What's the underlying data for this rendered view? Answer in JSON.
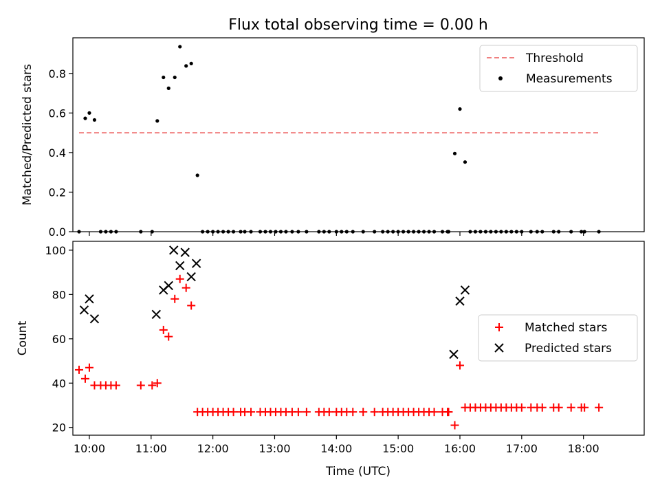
{
  "title": "Flux total observing time = 0.00 h",
  "chart_data": [
    {
      "type": "scatter",
      "title": "Flux total observing time = 0.00 h",
      "xlabel": "",
      "ylabel": "Matched/Predicted stars",
      "xlim": [
        "09:44",
        "18:59"
      ],
      "ylim": [
        0,
        0.98
      ],
      "yticks": [
        0.0,
        0.2,
        0.4,
        0.6,
        0.8
      ],
      "yticklabels": [
        "0.0",
        "0.2",
        "0.4",
        "0.6",
        "0.8"
      ],
      "xticks": [
        "10:00",
        "11:00",
        "12:00",
        "13:00",
        "14:00",
        "15:00",
        "16:00",
        "17:00",
        "18:00"
      ],
      "grid": false,
      "legend": {
        "position": "top-right",
        "entries": [
          "Threshold",
          "Measurements"
        ]
      },
      "threshold": {
        "name": "Threshold",
        "value": 0.5,
        "x_start": "09:50",
        "x_end": "18:15",
        "color": "#f08080",
        "style": "dashed"
      },
      "series": [
        {
          "name": "Measurements",
          "color": "#000000",
          "marker": "dot",
          "points": [
            [
              "09:50",
              0
            ],
            [
              "09:56",
              0.573
            ],
            [
              "10:00",
              0.6
            ],
            [
              "10:05",
              0.565
            ],
            [
              "10:11",
              0
            ],
            [
              "10:16",
              0
            ],
            [
              "10:21",
              0
            ],
            [
              "10:26",
              0
            ],
            [
              "10:50",
              0
            ],
            [
              "11:01",
              0
            ],
            [
              "11:06",
              0.56
            ],
            [
              "11:12",
              0.78
            ],
            [
              "11:17",
              0.725
            ],
            [
              "11:23",
              0.78
            ],
            [
              "11:28",
              0.935
            ],
            [
              "11:34",
              0.838
            ],
            [
              "11:39",
              0.85
            ],
            [
              "11:45",
              0.285
            ],
            [
              "11:50",
              0
            ],
            [
              "11:55",
              0
            ],
            [
              "12:00",
              0
            ],
            [
              "12:05",
              0
            ],
            [
              "12:10",
              0
            ],
            [
              "12:15",
              0
            ],
            [
              "12:20",
              0
            ],
            [
              "12:27",
              0
            ],
            [
              "12:31",
              0
            ],
            [
              "12:37",
              0
            ],
            [
              "12:46",
              0
            ],
            [
              "12:51",
              0
            ],
            [
              "12:56",
              0
            ],
            [
              "13:01",
              0
            ],
            [
              "13:06",
              0
            ],
            [
              "13:11",
              0
            ],
            [
              "13:17",
              0
            ],
            [
              "13:23",
              0
            ],
            [
              "13:31",
              0
            ],
            [
              "13:43",
              0
            ],
            [
              "13:48",
              0
            ],
            [
              "13:53",
              0
            ],
            [
              "14:00",
              0
            ],
            [
              "14:05",
              0
            ],
            [
              "14:10",
              0
            ],
            [
              "14:16",
              0
            ],
            [
              "14:26",
              0
            ],
            [
              "14:37",
              0
            ],
            [
              "14:45",
              0
            ],
            [
              "14:50",
              0
            ],
            [
              "14:55",
              0
            ],
            [
              "15:00",
              0
            ],
            [
              "15:05",
              0
            ],
            [
              "15:10",
              0
            ],
            [
              "15:15",
              0
            ],
            [
              "15:20",
              0
            ],
            [
              "15:25",
              0
            ],
            [
              "15:30",
              0
            ],
            [
              "15:35",
              0
            ],
            [
              "15:43",
              0
            ],
            [
              "15:48",
              0
            ],
            [
              "15:49",
              0
            ],
            [
              "15:55",
              0.395
            ],
            [
              "16:00",
              0.62
            ],
            [
              "16:05",
              0.352
            ],
            [
              "16:10",
              0
            ],
            [
              "16:15",
              0
            ],
            [
              "16:20",
              0
            ],
            [
              "16:25",
              0
            ],
            [
              "16:30",
              0
            ],
            [
              "16:35",
              0
            ],
            [
              "16:40",
              0
            ],
            [
              "16:45",
              0
            ],
            [
              "16:50",
              0
            ],
            [
              "16:55",
              0
            ],
            [
              "17:00",
              0
            ],
            [
              "17:09",
              0
            ],
            [
              "17:15",
              0
            ],
            [
              "17:20",
              0
            ],
            [
              "17:31",
              0
            ],
            [
              "17:36",
              0
            ],
            [
              "17:48",
              0
            ],
            [
              "17:58",
              0
            ],
            [
              "18:01",
              0
            ],
            [
              "18:15",
              0
            ]
          ]
        }
      ]
    },
    {
      "type": "scatter",
      "title": "",
      "xlabel": "Time (UTC)",
      "ylabel": "Count",
      "xlim": [
        "09:44",
        "18:59"
      ],
      "ylim": [
        16.5,
        104
      ],
      "yticks": [
        20,
        40,
        60,
        80,
        100
      ],
      "yticklabels": [
        "20",
        "40",
        "60",
        "80",
        "100"
      ],
      "xticks": [
        "10:00",
        "11:00",
        "12:00",
        "13:00",
        "14:00",
        "15:00",
        "16:00",
        "17:00",
        "18:00"
      ],
      "grid": false,
      "legend": {
        "position": "center-right",
        "entries": [
          "Matched stars",
          "Predicted stars"
        ]
      },
      "series": [
        {
          "name": "Matched stars",
          "color": "#ff0000",
          "marker": "plus",
          "points": [
            [
              "09:50",
              46
            ],
            [
              "09:56",
              42
            ],
            [
              "10:00",
              47
            ],
            [
              "10:05",
              39
            ],
            [
              "10:11",
              39
            ],
            [
              "10:16",
              39
            ],
            [
              "10:21",
              39
            ],
            [
              "10:26",
              39
            ],
            [
              "10:50",
              39
            ],
            [
              "11:01",
              39
            ],
            [
              "11:06",
              40
            ],
            [
              "11:12",
              64
            ],
            [
              "11:17",
              61
            ],
            [
              "11:23",
              78
            ],
            [
              "11:28",
              87
            ],
            [
              "11:34",
              83
            ],
            [
              "11:39",
              75
            ],
            [
              "11:45",
              27
            ],
            [
              "11:50",
              27
            ],
            [
              "11:55",
              27
            ],
            [
              "12:00",
              27
            ],
            [
              "12:05",
              27
            ],
            [
              "12:10",
              27
            ],
            [
              "12:15",
              27
            ],
            [
              "12:20",
              27
            ],
            [
              "12:27",
              27
            ],
            [
              "12:31",
              27
            ],
            [
              "12:37",
              27
            ],
            [
              "12:46",
              27
            ],
            [
              "12:51",
              27
            ],
            [
              "12:56",
              27
            ],
            [
              "13:01",
              27
            ],
            [
              "13:06",
              27
            ],
            [
              "13:11",
              27
            ],
            [
              "13:17",
              27
            ],
            [
              "13:23",
              27
            ],
            [
              "13:31",
              27
            ],
            [
              "13:43",
              27
            ],
            [
              "13:48",
              27
            ],
            [
              "13:53",
              27
            ],
            [
              "14:00",
              27
            ],
            [
              "14:05",
              27
            ],
            [
              "14:10",
              27
            ],
            [
              "14:16",
              27
            ],
            [
              "14:26",
              27
            ],
            [
              "14:37",
              27
            ],
            [
              "14:45",
              27
            ],
            [
              "14:50",
              27
            ],
            [
              "14:55",
              27
            ],
            [
              "15:00",
              27
            ],
            [
              "15:05",
              27
            ],
            [
              "15:10",
              27
            ],
            [
              "15:15",
              27
            ],
            [
              "15:20",
              27
            ],
            [
              "15:25",
              27
            ],
            [
              "15:30",
              27
            ],
            [
              "15:35",
              27
            ],
            [
              "15:43",
              27
            ],
            [
              "15:48",
              27
            ],
            [
              "15:49",
              27
            ],
            [
              "15:55",
              21
            ],
            [
              "16:00",
              48
            ],
            [
              "16:05",
              29
            ],
            [
              "16:10",
              29
            ],
            [
              "16:15",
              29
            ],
            [
              "16:20",
              29
            ],
            [
              "16:25",
              29
            ],
            [
              "16:30",
              29
            ],
            [
              "16:35",
              29
            ],
            [
              "16:40",
              29
            ],
            [
              "16:45",
              29
            ],
            [
              "16:50",
              29
            ],
            [
              "16:55",
              29
            ],
            [
              "17:00",
              29
            ],
            [
              "17:09",
              29
            ],
            [
              "17:15",
              29
            ],
            [
              "17:20",
              29
            ],
            [
              "17:31",
              29
            ],
            [
              "17:36",
              29
            ],
            [
              "17:48",
              29
            ],
            [
              "17:58",
              29
            ],
            [
              "18:01",
              29
            ],
            [
              "18:15",
              29
            ]
          ]
        },
        {
          "name": "Predicted stars",
          "color": "#000000",
          "marker": "x",
          "points": [
            [
              "09:55",
              73
            ],
            [
              "10:00",
              78
            ],
            [
              "10:05",
              69
            ],
            [
              "11:05",
              71
            ],
            [
              "11:12",
              82
            ],
            [
              "11:17",
              84
            ],
            [
              "11:22",
              100
            ],
            [
              "11:28",
              93
            ],
            [
              "11:33",
              99
            ],
            [
              "11:39",
              88
            ],
            [
              "11:44",
              94
            ],
            [
              "15:54",
              53
            ],
            [
              "16:00",
              77
            ],
            [
              "16:05",
              82
            ]
          ]
        }
      ]
    }
  ]
}
